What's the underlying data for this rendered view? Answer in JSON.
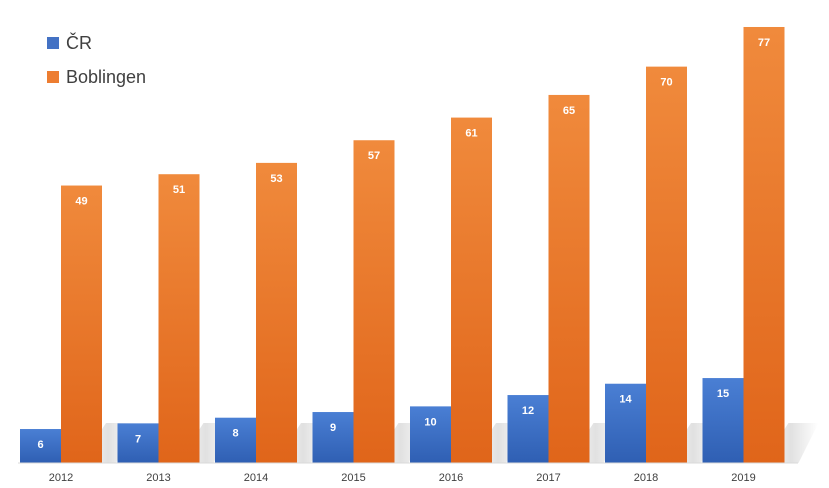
{
  "chart_data": {
    "type": "bar",
    "categories": [
      "2012",
      "2013",
      "2014",
      "2015",
      "2016",
      "2017",
      "2018",
      "2019"
    ],
    "series": [
      {
        "name": "ČR",
        "values": [
          6,
          7,
          8,
          9,
          10,
          12,
          14,
          15
        ],
        "color": "#4472C4"
      },
      {
        "name": "Boblingen",
        "values": [
          49,
          51,
          53,
          57,
          61,
          65,
          70,
          77
        ],
        "color": "#ED7D31"
      }
    ],
    "ylim": [
      0,
      80
    ],
    "grid": false,
    "legend": "top-left",
    "data_labels": true
  }
}
